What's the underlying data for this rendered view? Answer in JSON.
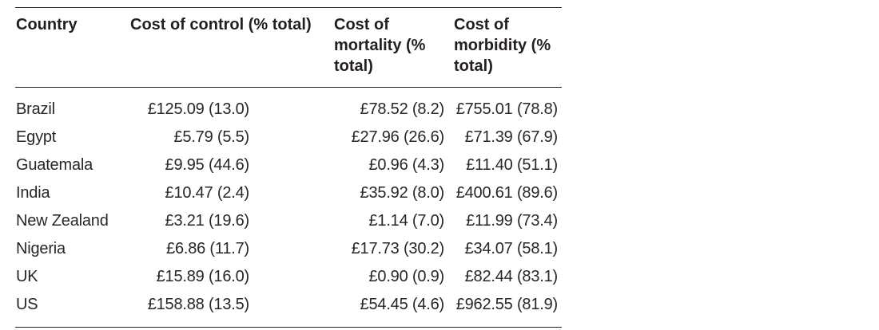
{
  "table": {
    "headers": {
      "country": "Country",
      "control": "Cost of control (% total)",
      "mortality": "Cost of mortality (% total)",
      "morbidity": "Cost of morbidity (% total)"
    },
    "rows": [
      {
        "country": "Brazil",
        "control": "£125.09 (13.0)",
        "mortality": "£78.52 (8.2)",
        "morbidity": "£755.01 (78.8)"
      },
      {
        "country": "Egypt",
        "control": "£5.79 (5.5)",
        "mortality": "£27.96 (26.6)",
        "morbidity": "£71.39 (67.9)"
      },
      {
        "country": "Guatemala",
        "control": "£9.95 (44.6)",
        "mortality": "£0.96 (4.3)",
        "morbidity": "£11.40 (51.1)"
      },
      {
        "country": "India",
        "control": "£10.47 (2.4)",
        "mortality": "£35.92 (8.0)",
        "morbidity": "£400.61 (89.6)"
      },
      {
        "country": "New Zealand",
        "control": "£3.21 (19.6)",
        "mortality": "£1.14 (7.0)",
        "morbidity": "£11.99 (73.4)"
      },
      {
        "country": "Nigeria",
        "control": "£6.86 (11.7)",
        "mortality": "£17.73 (30.2)",
        "morbidity": "£34.07 (58.1)"
      },
      {
        "country": "UK",
        "control": "£15.89 (16.0)",
        "mortality": "£0.90 (0.9)",
        "morbidity": "£82.44 (83.1)"
      },
      {
        "country": "US",
        "control": "£158.88 (13.5)",
        "mortality": "£54.45 (4.6)",
        "morbidity": "£962.55 (81.9)"
      }
    ]
  }
}
